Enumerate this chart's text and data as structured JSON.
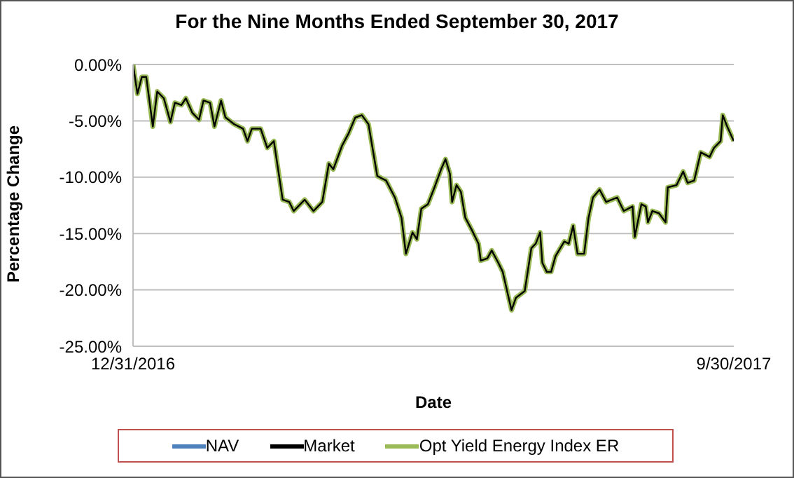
{
  "chart_data": {
    "type": "line",
    "title": "For the Nine Months Ended September 30, 2017",
    "xlabel": "Date",
    "ylabel": "Percentage Change",
    "x": [
      "2016-12-31",
      "2017-01-02",
      "2017-01-04",
      "2017-01-06",
      "2017-01-09",
      "2017-01-11",
      "2017-01-14",
      "2017-01-17",
      "2017-01-19",
      "2017-01-22",
      "2017-01-24",
      "2017-01-27",
      "2017-01-30",
      "2017-02-01",
      "2017-02-04",
      "2017-02-06",
      "2017-02-09",
      "2017-02-11",
      "2017-02-15",
      "2017-02-19",
      "2017-02-21",
      "2017-02-23",
      "2017-02-27",
      "2017-03-02",
      "2017-03-05",
      "2017-03-09",
      "2017-03-12",
      "2017-03-14",
      "2017-03-19",
      "2017-03-23",
      "2017-03-27",
      "2017-03-30",
      "2017-04-01",
      "2017-04-05",
      "2017-04-08",
      "2017-04-11",
      "2017-04-14",
      "2017-04-17",
      "2017-04-21",
      "2017-04-25",
      "2017-04-29",
      "2017-05-02",
      "2017-05-04",
      "2017-05-07",
      "2017-05-09",
      "2017-05-11",
      "2017-05-14",
      "2017-05-17",
      "2017-05-20",
      "2017-05-22",
      "2017-05-24",
      "2017-05-25",
      "2017-05-27",
      "2017-05-29",
      "2017-05-31",
      "2017-06-03",
      "2017-06-06",
      "2017-06-07",
      "2017-06-10",
      "2017-06-12",
      "2017-06-15",
      "2017-06-17",
      "2017-06-19",
      "2017-06-21",
      "2017-06-23",
      "2017-06-27",
      "2017-06-30",
      "2017-07-02",
      "2017-07-04",
      "2017-07-05",
      "2017-07-07",
      "2017-07-09",
      "2017-07-11",
      "2017-07-15",
      "2017-07-17",
      "2017-07-19",
      "2017-07-21",
      "2017-07-24",
      "2017-07-26",
      "2017-07-28",
      "2017-07-31",
      "2017-08-03",
      "2017-08-08",
      "2017-08-11",
      "2017-08-15",
      "2017-08-16",
      "2017-08-19",
      "2017-08-21",
      "2017-08-22",
      "2017-08-24",
      "2017-08-27",
      "2017-08-30",
      "2017-08-31",
      "2017-09-04",
      "2017-09-07",
      "2017-09-09",
      "2017-09-12",
      "2017-09-15",
      "2017-09-19",
      "2017-09-21",
      "2017-09-24",
      "2017-09-25",
      "2017-09-27",
      "2017-09-30"
    ],
    "series": [
      {
        "name": "NAV",
        "color": "#4f81bd",
        "values": [
          null,
          null,
          null,
          null,
          null,
          null,
          null,
          null,
          null,
          null,
          null,
          null,
          null,
          null,
          null,
          null,
          null,
          null,
          null,
          null,
          null,
          null,
          null,
          null,
          null,
          null,
          null,
          null,
          null,
          null,
          null,
          null,
          null,
          null,
          null,
          null,
          null,
          null,
          null,
          null,
          null,
          null,
          null,
          null,
          null,
          null,
          null,
          null,
          null,
          null,
          null,
          null,
          null,
          null,
          null,
          null,
          null,
          null,
          null,
          null,
          null,
          null,
          null,
          null,
          null,
          null,
          null,
          null,
          null,
          null,
          null,
          null,
          null,
          null,
          null,
          null,
          null,
          null,
          null,
          null,
          null,
          null,
          null,
          null,
          null,
          null,
          null,
          null,
          null,
          null,
          null,
          null,
          null,
          null,
          null,
          null,
          null,
          null,
          null,
          null,
          null,
          null,
          null,
          null
        ]
      },
      {
        "name": "Market",
        "color": "#000000",
        "values": [
          0,
          -2.6,
          -1.1,
          -1.1,
          -5.5,
          -2.4,
          -3,
          -5.1,
          -3.4,
          -3.6,
          -3,
          -4.3,
          -4.9,
          -3.2,
          -3.4,
          -5.5,
          -3.2,
          -4.7,
          -5.3,
          -5.7,
          -6.8,
          -5.7,
          -5.7,
          -7.4,
          -6.8,
          -12,
          -12.2,
          -13,
          -12,
          -13,
          -12.2,
          -8.8,
          -9.3,
          -7.2,
          -6.1,
          -4.7,
          -4.5,
          -5.3,
          -9.9,
          -10.3,
          -11.8,
          -13.6,
          -16.8,
          -14.9,
          -15.5,
          -12.8,
          -12.4,
          -10.9,
          -9.3,
          -8.4,
          -9.7,
          -12.2,
          -10.7,
          -11.3,
          -13.6,
          -14.7,
          -15.9,
          -17.4,
          -17.2,
          -16.5,
          -17.6,
          -18.4,
          -20.1,
          -21.8,
          -20.7,
          -20.1,
          -16.3,
          -15.9,
          -14.9,
          -17.6,
          -18.4,
          -18.4,
          -17,
          -15.7,
          -15.9,
          -14.3,
          -16.8,
          -16.8,
          -13.6,
          -11.8,
          -11.1,
          -12.2,
          -11.8,
          -13,
          -12.6,
          -15.3,
          -12.4,
          -12.6,
          -14,
          -13,
          -13.2,
          -14,
          -10.9,
          -10.7,
          -9.5,
          -10.5,
          -10.3,
          -7.8,
          -8.2,
          -7.4,
          -6.8,
          -4.5,
          -5.5,
          -6.8
        ]
      },
      {
        "name": "Opt Yield Energy Index ER",
        "color": "#9bbb59",
        "values": [
          0,
          -2.6,
          -1.1,
          -1.1,
          -5.5,
          -2.4,
          -3,
          -5.1,
          -3.4,
          -3.6,
          -3,
          -4.3,
          -4.9,
          -3.2,
          -3.4,
          -5.5,
          -3.2,
          -4.7,
          -5.3,
          -5.7,
          -6.8,
          -5.7,
          -5.7,
          -7.4,
          -6.8,
          -12,
          -12.2,
          -13,
          -12,
          -13,
          -12.2,
          -8.8,
          -9.3,
          -7.2,
          -6.1,
          -4.7,
          -4.5,
          -5.3,
          -9.9,
          -10.3,
          -11.8,
          -13.6,
          -16.8,
          -14.9,
          -15.5,
          -12.8,
          -12.4,
          -10.9,
          -9.3,
          -8.4,
          -9.7,
          -12.2,
          -10.7,
          -11.3,
          -13.6,
          -14.7,
          -15.9,
          -17.4,
          -17.2,
          -16.5,
          -17.6,
          -18.4,
          -20.1,
          -21.8,
          -20.7,
          -20.1,
          -16.3,
          -15.9,
          -14.9,
          -17.6,
          -18.4,
          -18.4,
          -17,
          -15.7,
          -15.9,
          -14.3,
          -16.8,
          -16.8,
          -13.6,
          -11.8,
          -11.1,
          -12.2,
          -11.8,
          -13,
          -12.6,
          -15.3,
          -12.4,
          -12.6,
          -14,
          -13,
          -13.2,
          -14,
          -10.9,
          -10.7,
          -9.5,
          -10.5,
          -10.3,
          -7.8,
          -8.2,
          -7.4,
          -6.8,
          -4.5,
          -5.5,
          -6.8
        ]
      }
    ],
    "xlim": [
      "2016-12-31",
      "2017-09-30"
    ],
    "xticks": [
      {
        "value": "2016-12-31",
        "label": "12/31/2016"
      },
      {
        "value": "2017-09-30",
        "label": "9/30/2017"
      }
    ],
    "ylim": [
      -25,
      0
    ],
    "yticks": [
      {
        "value": 0,
        "label": "0.00%"
      },
      {
        "value": -5,
        "label": "-5.00%"
      },
      {
        "value": -10,
        "label": "-10.00%"
      },
      {
        "value": -15,
        "label": "-15.00%"
      },
      {
        "value": -20,
        "label": "-20.00%"
      },
      {
        "value": -25,
        "label": "-25.00%"
      }
    ],
    "grid": "y",
    "legend": "bottom",
    "marker": "none",
    "line_style": "solid"
  }
}
